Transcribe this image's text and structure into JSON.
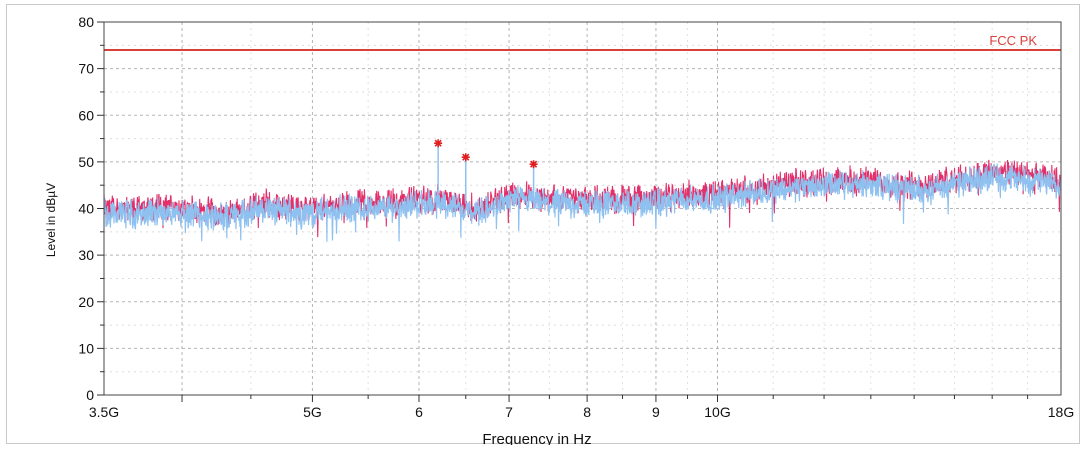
{
  "chart_data": {
    "type": "line",
    "xlabel": "Frequency in Hz",
    "ylabel": "Level in dBµV",
    "x_scale": "log",
    "xlim": [
      3.5,
      18
    ],
    "ylim": [
      0,
      80
    ],
    "grid": true,
    "x_ticks": [
      {
        "value": 3.5,
        "label": "3.5G"
      },
      {
        "value": 5,
        "label": "5G"
      },
      {
        "value": 6,
        "label": "6"
      },
      {
        "value": 7,
        "label": "7"
      },
      {
        "value": 8,
        "label": "8"
      },
      {
        "value": 9,
        "label": "9"
      },
      {
        "value": 10,
        "label": "10G"
      },
      {
        "value": 18,
        "label": "18G"
      }
    ],
    "y_ticks": [
      0,
      10,
      20,
      30,
      40,
      50,
      60,
      70,
      80
    ],
    "limit_line": {
      "name": "FCC PK",
      "y": 74,
      "color": "#d9403a"
    },
    "markers": [
      {
        "x": 6.2,
        "y": 54
      },
      {
        "x": 6.5,
        "y": 51
      },
      {
        "x": 7.3,
        "y": 49.5
      }
    ],
    "series": [
      {
        "color": "#e0195a",
        "x": [
          3.5,
          3.7,
          4.0,
          4.3,
          4.6,
          5.0,
          5.3,
          5.6,
          6.0,
          6.3,
          6.6,
          6.8,
          7.0,
          7.5,
          8.0,
          8.5,
          9.0,
          9.5,
          10.0,
          11.0,
          12.0,
          13.0,
          14.0,
          15.0,
          16.0,
          17.0,
          18.0
        ],
        "values": [
          40,
          40,
          40,
          39,
          41,
          40,
          41,
          41,
          42,
          42,
          40,
          41,
          43,
          42,
          42,
          42,
          42,
          43,
          43,
          45,
          46,
          46,
          45,
          46,
          48,
          47,
          46
        ]
      },
      {
        "color": "#8ec1f0",
        "x": [
          3.5,
          3.7,
          4.0,
          4.3,
          4.6,
          5.0,
          5.3,
          5.6,
          6.0,
          6.3,
          6.6,
          6.8,
          7.0,
          7.5,
          8.0,
          8.5,
          9.0,
          9.5,
          10.0,
          11.0,
          12.0,
          13.0,
          14.0,
          15.0,
          16.0,
          17.0,
          18.0
        ],
        "values": [
          39,
          39,
          39,
          38,
          40,
          39,
          40,
          40,
          41,
          41,
          39,
          40,
          42,
          41,
          41,
          41,
          41,
          42,
          42,
          44,
          45,
          45,
          44,
          45,
          47,
          46,
          45
        ]
      }
    ]
  }
}
